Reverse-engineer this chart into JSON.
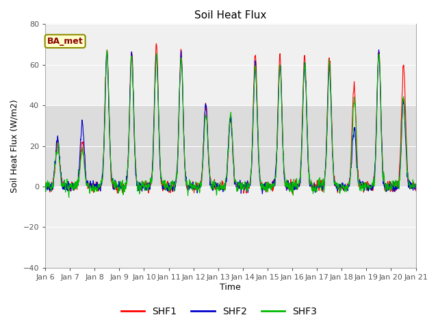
{
  "title": "Soil Heat Flux",
  "xlabel": "Time",
  "ylabel": "Soil Heat Flux (W/m2)",
  "ylim": [
    -40,
    80
  ],
  "yticks": [
    -40,
    -20,
    0,
    20,
    40,
    60,
    80
  ],
  "annotation_text": "BA_met",
  "annotation_bg": "#FFFFCC",
  "annotation_color": "#8B0000",
  "annotation_edge": "#8B8B00",
  "line_colors": {
    "SHF1": "#FF0000",
    "SHF2": "#0000CC",
    "SHF3": "#00BB00"
  },
  "plot_bg_upper": "#DCDCDC",
  "plot_bg_lower": "#E8E8E8",
  "band_y1": 0,
  "band_y2": 40,
  "band_color": "#DCDCDC",
  "outer_bg": "#F0F0F0",
  "n_points": 2160,
  "n_days": 15,
  "grid_color": "#FFFFFF",
  "xtick_days": [
    0,
    1,
    2,
    3,
    4,
    5,
    6,
    7,
    8,
    9,
    10,
    11,
    12,
    13,
    14,
    15
  ],
  "xtick_labels": [
    "Jan 6",
    "Jan 7",
    "Jan 8",
    "Jan 9",
    "Jan 10",
    "Jan 11",
    "Jan 12",
    "Jan 13",
    "Jan 14",
    "Jan 15",
    "Jan 16",
    "Jan 17",
    "Jan 18",
    "Jan 19",
    "Jan 20",
    "Jan 21"
  ]
}
